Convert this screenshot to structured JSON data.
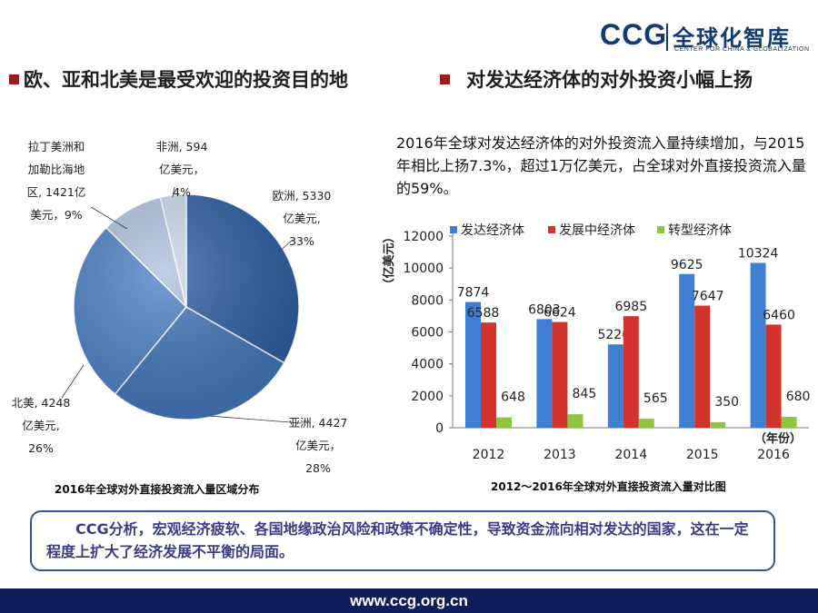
{
  "logo": {
    "brand": "CCG",
    "cn": "全球化智库",
    "en": "CENTER FOR CHINA & GLOBALIZATION"
  },
  "headings": {
    "left": "欧、亚和北美是最受欢迎的投资目的地",
    "right": "对发达经济体的对外投资小幅上扬"
  },
  "paragraph": "2016年全球对发达经济体的对外投资流入量持续增加，与2015年相比上扬7.3%，超过1万亿美元，占全球对外直接投资流入量的59%。",
  "callout": "CCG分析，宏观经济疲软、各国地缘政治风险和政策不确定性，导致资金流向相对发达的国家，这在一定程度上扩大了经济发展不平衡的局面。",
  "footer": "www.ccg.org.cn",
  "chart_data": [
    {
      "type": "pie",
      "title": "2016年全球对外直接投资流入量区域分布",
      "slices": [
        {
          "label_lines": [
            "欧洲, 5330",
            "亿美元,",
            "33%"
          ],
          "value": 5330,
          "percent": 33
        },
        {
          "label_lines": [
            "亚洲, 4427",
            "亿美元，",
            "28%"
          ],
          "value": 4427,
          "percent": 28
        },
        {
          "label_lines": [
            "北美, 4248",
            "亿美元,",
            "26%"
          ],
          "value": 4248,
          "percent": 26
        },
        {
          "label_lines": [
            "拉丁美洲和",
            "加勒比海地",
            "区, 1421亿",
            "美元，9%"
          ],
          "value": 1421,
          "percent": 9
        },
        {
          "label_lines": [
            "非洲, 594",
            "亿美元，",
            "4%"
          ],
          "value": 594,
          "percent": 4
        }
      ],
      "colors": [
        "#2a5a9e",
        "#3f72b7",
        "#4a7fc4",
        "#aebfdd",
        "#c8d5ea"
      ]
    },
    {
      "type": "bar",
      "title": "2012～2016年全球对外直接投资流入量对比图",
      "ylabel": "（亿美元）",
      "xlabel": "（年份）",
      "categories": [
        "2012",
        "2013",
        "2014",
        "2015",
        "2016"
      ],
      "series": [
        {
          "name": "发达经济体",
          "values": [
            7874,
            6803,
            5220,
            9625,
            10324
          ],
          "color": "#3f7fd3"
        },
        {
          "name": "发展中经济体",
          "values": [
            6588,
            6624,
            6985,
            7647,
            6460
          ],
          "color": "#d2342d"
        },
        {
          "name": "转型经济体",
          "values": [
            648,
            845,
            565,
            350,
            680
          ],
          "color": "#8cc63f"
        }
      ],
      "yticks": [
        "0",
        "2000",
        "4000",
        "6000",
        "8000",
        "10000",
        "12000"
      ],
      "ylim": [
        0,
        12000
      ],
      "grid": false,
      "legend": "top"
    }
  ]
}
